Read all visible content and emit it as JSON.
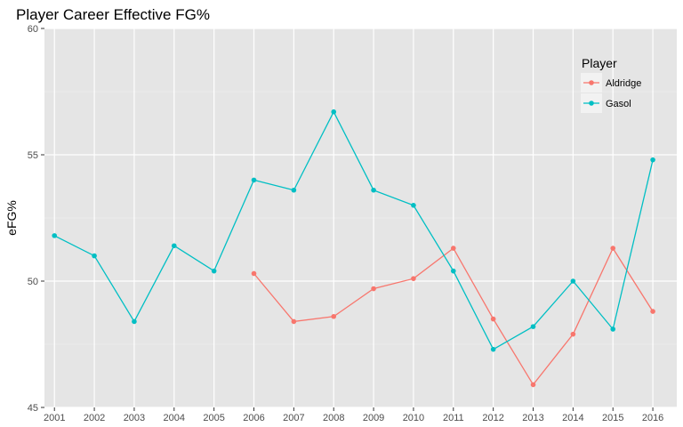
{
  "chart_data": {
    "type": "line",
    "title": "Player Career Effective FG%",
    "xlabel": "",
    "ylabel": "eFG%",
    "x": [
      2001,
      2002,
      2003,
      2004,
      2005,
      2006,
      2007,
      2008,
      2009,
      2010,
      2011,
      2012,
      2013,
      2014,
      2015,
      2016
    ],
    "xlim": [
      2000.75,
      2016.6
    ],
    "ylim": [
      45,
      60
    ],
    "yticks": [
      45,
      50,
      55,
      60
    ],
    "grid": true,
    "legend": {
      "title": "Player",
      "placement": "top-right"
    },
    "series": [
      {
        "name": "Aldridge",
        "color": "#F8766D",
        "values": [
          null,
          null,
          null,
          null,
          null,
          50.3,
          48.4,
          48.6,
          49.7,
          50.1,
          51.3,
          48.5,
          45.9,
          47.9,
          51.3,
          48.8
        ]
      },
      {
        "name": "Gasol",
        "color": "#00BFC4",
        "values": [
          51.8,
          51.0,
          48.4,
          51.4,
          50.4,
          54.0,
          53.6,
          56.7,
          53.6,
          53.0,
          50.4,
          47.3,
          48.2,
          50.0,
          48.1,
          54.8
        ]
      }
    ]
  }
}
